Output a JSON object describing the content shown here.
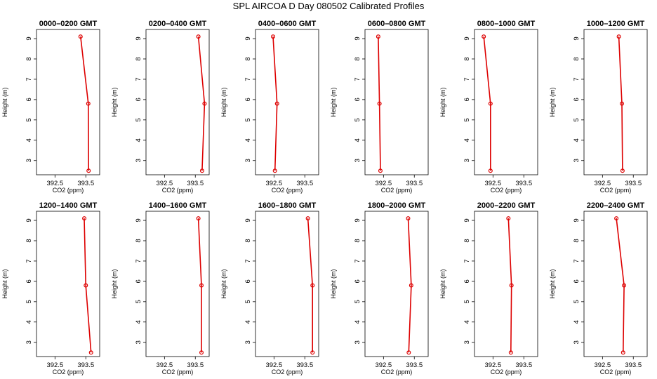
{
  "title": "SPL AIRCOA D  Day 080502  Calibrated Profiles",
  "colors": {
    "series": "#dd0000",
    "axis": "#000000",
    "background": "#ffffff"
  },
  "chart_data": [
    {
      "type": "line",
      "title": "0000–0200 GMT",
      "xlabel": "CO2 (ppm)",
      "ylabel": "Height (m)",
      "xticks": [
        "392.5",
        "393.5"
      ],
      "yticks": [
        "3",
        "4",
        "5",
        "6",
        "7",
        "8",
        "9"
      ],
      "xlim": [
        391.9,
        393.95
      ],
      "ylim": [
        2.3,
        9.45
      ],
      "x": [
        393.59,
        393.58,
        393.33
      ],
      "y": [
        2.5,
        5.8,
        9.1
      ]
    },
    {
      "type": "line",
      "title": "0200–0400 GMT",
      "xlabel": "CO2 (ppm)",
      "ylabel": "Height (m)",
      "xticks": [
        "392.5",
        "393.5"
      ],
      "yticks": [
        "3",
        "4",
        "5",
        "6",
        "7",
        "8",
        "9"
      ],
      "xlim": [
        391.9,
        393.95
      ],
      "ylim": [
        2.3,
        9.45
      ],
      "x": [
        393.72,
        393.8,
        393.6
      ],
      "y": [
        2.5,
        5.8,
        9.1
      ]
    },
    {
      "type": "line",
      "title": "0400–0600 GMT",
      "xlabel": "CO2 (ppm)",
      "ylabel": "Height (m)",
      "xticks": [
        "392.5",
        "393.5"
      ],
      "yticks": [
        "3",
        "4",
        "5",
        "6",
        "7",
        "8",
        "9"
      ],
      "xlim": [
        391.9,
        393.95
      ],
      "ylim": [
        2.3,
        9.45
      ],
      "x": [
        392.53,
        392.6,
        392.47
      ],
      "y": [
        2.5,
        5.8,
        9.1
      ]
    },
    {
      "type": "line",
      "title": "0600–0800 GMT",
      "xlabel": "CO2 (ppm)",
      "ylabel": "Height (m)",
      "xticks": [
        "392.5",
        "393.5"
      ],
      "yticks": [
        "3",
        "4",
        "5",
        "6",
        "7",
        "8",
        "9"
      ],
      "xlim": [
        391.9,
        393.95
      ],
      "ylim": [
        2.3,
        9.45
      ],
      "x": [
        392.4,
        392.37,
        392.33
      ],
      "y": [
        2.5,
        5.8,
        9.1
      ]
    },
    {
      "type": "line",
      "title": "0800–1000 GMT",
      "xlabel": "CO2 (ppm)",
      "ylabel": "Height (m)",
      "xticks": [
        "392.5",
        "393.5"
      ],
      "yticks": [
        "3",
        "4",
        "5",
        "6",
        "7",
        "8",
        "9"
      ],
      "xlim": [
        391.9,
        393.95
      ],
      "ylim": [
        2.3,
        9.45
      ],
      "x": [
        392.42,
        392.42,
        392.2
      ],
      "y": [
        2.5,
        5.8,
        9.1
      ]
    },
    {
      "type": "line",
      "title": "1000–1200 GMT",
      "xlabel": "CO2 (ppm)",
      "ylabel": "Height (m)",
      "xticks": [
        "392.5",
        "393.5"
      ],
      "yticks": [
        "3",
        "4",
        "5",
        "6",
        "7",
        "8",
        "9"
      ],
      "xlim": [
        391.9,
        393.95
      ],
      "ylim": [
        2.3,
        9.45
      ],
      "x": [
        393.15,
        393.13,
        393.03
      ],
      "y": [
        2.5,
        5.8,
        9.1
      ]
    },
    {
      "type": "line",
      "title": "1200–1400 GMT",
      "xlabel": "CO2 (ppm)",
      "ylabel": "Height (m)",
      "xticks": [
        "392.5",
        "393.5"
      ],
      "yticks": [
        "3",
        "4",
        "5",
        "6",
        "7",
        "8",
        "9"
      ],
      "xlim": [
        391.9,
        393.95
      ],
      "ylim": [
        2.3,
        9.45
      ],
      "x": [
        393.67,
        393.5,
        393.45
      ],
      "y": [
        2.5,
        5.8,
        9.1
      ]
    },
    {
      "type": "line",
      "title": "1400–1600 GMT",
      "xlabel": "CO2 (ppm)",
      "ylabel": "Height (m)",
      "xticks": [
        "392.5",
        "393.5"
      ],
      "yticks": [
        "3",
        "4",
        "5",
        "6",
        "7",
        "8",
        "9"
      ],
      "xlim": [
        391.9,
        393.95
      ],
      "ylim": [
        2.3,
        9.45
      ],
      "x": [
        393.7,
        393.7,
        393.6
      ],
      "y": [
        2.5,
        5.8,
        9.1
      ]
    },
    {
      "type": "line",
      "title": "1600–1800 GMT",
      "xlabel": "CO2 (ppm)",
      "ylabel": "Height (m)",
      "xticks": [
        "392.5",
        "393.5"
      ],
      "yticks": [
        "3",
        "4",
        "5",
        "6",
        "7",
        "8",
        "9"
      ],
      "xlim": [
        391.9,
        393.95
      ],
      "ylim": [
        2.3,
        9.45
      ],
      "x": [
        393.75,
        393.75,
        393.6
      ],
      "y": [
        2.5,
        5.8,
        9.1
      ]
    },
    {
      "type": "line",
      "title": "1800–2000 GMT",
      "xlabel": "CO2 (ppm)",
      "ylabel": "Height (m)",
      "xticks": [
        "392.5",
        "393.5"
      ],
      "yticks": [
        "3",
        "4",
        "5",
        "6",
        "7",
        "8",
        "9"
      ],
      "xlim": [
        391.9,
        393.95
      ],
      "ylim": [
        2.3,
        9.45
      ],
      "x": [
        393.32,
        393.4,
        393.3
      ],
      "y": [
        2.5,
        5.8,
        9.1
      ]
    },
    {
      "type": "line",
      "title": "2000–2200 GMT",
      "xlabel": "CO2 (ppm)",
      "ylabel": "Height (m)",
      "xticks": [
        "392.5",
        "393.5"
      ],
      "yticks": [
        "3",
        "4",
        "5",
        "6",
        "7",
        "8",
        "9"
      ],
      "xlim": [
        391.9,
        393.95
      ],
      "ylim": [
        2.3,
        9.45
      ],
      "x": [
        393.08,
        393.1,
        393.0
      ],
      "y": [
        2.5,
        5.8,
        9.1
      ]
    },
    {
      "type": "line",
      "title": "2200–2400 GMT",
      "xlabel": "CO2 (ppm)",
      "ylabel": "Height (m)",
      "xticks": [
        "392.5",
        "393.5"
      ],
      "yticks": [
        "3",
        "4",
        "5",
        "6",
        "7",
        "8",
        "9"
      ],
      "xlim": [
        391.9,
        393.95
      ],
      "ylim": [
        2.3,
        9.45
      ],
      "x": [
        393.17,
        393.2,
        392.95
      ],
      "y": [
        2.5,
        5.8,
        9.1
      ]
    }
  ]
}
